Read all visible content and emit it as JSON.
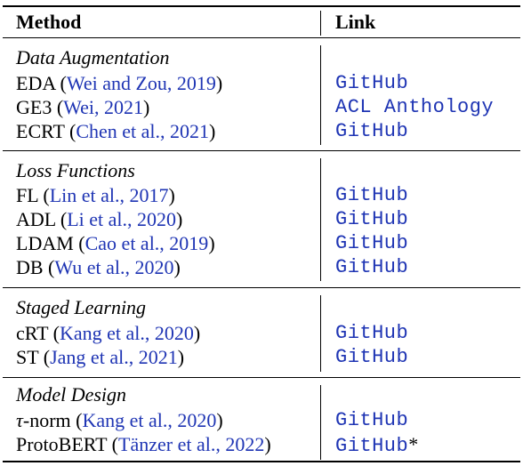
{
  "header": {
    "method": "Method",
    "link": "Link"
  },
  "groups": [
    {
      "title": "Data Augmentation",
      "rows": [
        {
          "name": "EDA (",
          "cite": "Wei and Zou, 2019",
          "close": ")",
          "link": "GitHub"
        },
        {
          "name": "GE3 (",
          "cite": "Wei, 2021",
          "close": ")",
          "link": "ACL Anthology"
        },
        {
          "name": "ECRT (",
          "cite": "Chen et al., 2021",
          "close": ")",
          "link": "GitHub"
        }
      ]
    },
    {
      "title": "Loss Functions",
      "rows": [
        {
          "name": "FL (",
          "cite": "Lin et al., 2017",
          "close": ")",
          "link": "GitHub"
        },
        {
          "name": "ADL (",
          "cite": "Li et al., 2020",
          "close": ")",
          "link": "GitHub"
        },
        {
          "name": "LDAM (",
          "cite": "Cao et al., 2019",
          "close": ")",
          "link": "GitHub"
        },
        {
          "name": "DB (",
          "cite": "Wu et al., 2020",
          "close": ")",
          "link": "GitHub"
        }
      ]
    },
    {
      "title": "Staged Learning",
      "rows": [
        {
          "name": "cRT (",
          "cite": "Kang et al., 2020",
          "close": ")",
          "link": "GitHub"
        },
        {
          "name": "ST (",
          "cite": "Jang et al., 2021",
          "close": ")",
          "link": "GitHub"
        }
      ]
    },
    {
      "title": "Model Design",
      "rows": [
        {
          "tau": "τ",
          "name": "-norm (",
          "cite": "Kang et al., 2020",
          "close": ")",
          "link": "GitHub"
        },
        {
          "name": "ProtoBERT (",
          "cite": "Tänzer et al., 2022",
          "close": ")",
          "link": "GitHub",
          "link_suffix": "*"
        }
      ]
    }
  ]
}
